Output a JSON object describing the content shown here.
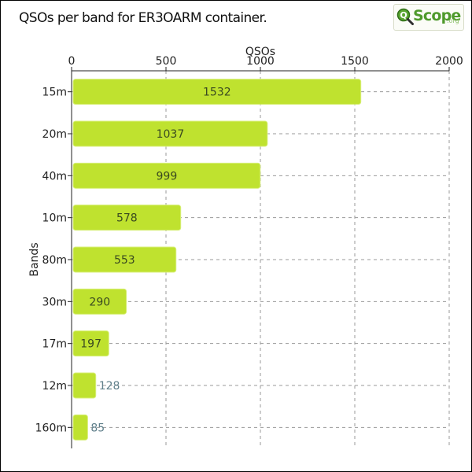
{
  "title": "QSOs per band for ER3OARM container.",
  "logo": {
    "text": "Scope",
    "suffix": ".org",
    "icon": "qscope-magnifier-icon"
  },
  "colors": {
    "bar": "#bfe22f",
    "bar_edge": "#d8ef7a",
    "grid": "#9a9a9a",
    "axis": "#222222"
  },
  "chart_data": {
    "type": "bar",
    "orientation": "horizontal",
    "title": "QSOs per band for ER3OARM container.",
    "xlabel": "QSOs",
    "ylabel": "Bands",
    "xaxis_position": "top",
    "xlim": [
      0,
      2000
    ],
    "xticks": [
      0,
      500,
      1000,
      1500,
      2000
    ],
    "grid": true,
    "categories": [
      "15m",
      "20m",
      "40m",
      "10m",
      "80m",
      "30m",
      "17m",
      "12m",
      "160m"
    ],
    "values": [
      1532,
      1037,
      999,
      578,
      553,
      290,
      197,
      128,
      85
    ]
  }
}
